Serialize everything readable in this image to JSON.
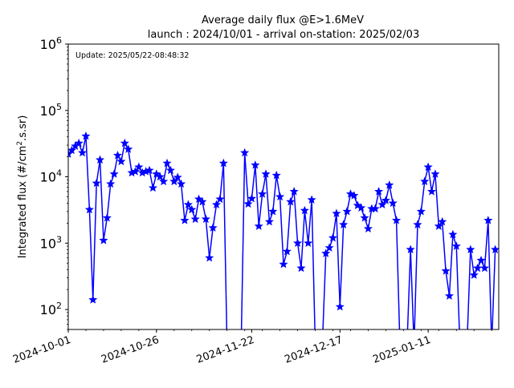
{
  "chart_data": {
    "type": "line",
    "title_line1": "Average daily flux @E>1.6MeV",
    "title_line2": "launch : 2024/10/01 - arrival on-station: 2025/02/03",
    "annotation": "Update: 2025/05/22-08:48:32",
    "ylabel_main": "Integrated flux (#/cm",
    "ylabel_sup": "2",
    "ylabel_end": ".s.sr)",
    "xlabel": "",
    "yscale": "log",
    "ylim": [
      50,
      1000000
    ],
    "xlim": [
      "2024-10-01",
      "2025-01-31"
    ],
    "grid": false,
    "legend": "none",
    "line_color": "#0000ff",
    "marker": "star",
    "x_ticks": [
      {
        "date": "2024-10-01",
        "label": "2024-10-01"
      },
      {
        "date": "2024-10-26",
        "label": "2024-10-26"
      },
      {
        "date": "2024-11-22",
        "label": "2024-11-22"
      },
      {
        "date": "2024-12-17",
        "label": "2024-12-17"
      },
      {
        "date": "2025-01-11",
        "label": "2025-01-11"
      }
    ],
    "y_ticks": [
      {
        "value": 100,
        "base": "10",
        "exp": "2"
      },
      {
        "value": 1000,
        "base": "10",
        "exp": "3"
      },
      {
        "value": 10000,
        "base": "10",
        "exp": "4"
      },
      {
        "value": 100000,
        "base": "10",
        "exp": "5"
      },
      {
        "value": 1000000,
        "base": "10",
        "exp": "6"
      }
    ],
    "series": [
      {
        "x": [
          "2024-10-01",
          "2024-10-02",
          "2024-10-03",
          "2024-10-04",
          "2024-10-05",
          "2024-10-06",
          "2024-10-07",
          "2024-10-08",
          "2024-10-09",
          "2024-10-10",
          "2024-10-11",
          "2024-10-12",
          "2024-10-13",
          "2024-10-14",
          "2024-10-15",
          "2024-10-16",
          "2024-10-17",
          "2024-10-18",
          "2024-10-19",
          "2024-10-20",
          "2024-10-21",
          "2024-10-22",
          "2024-10-23",
          "2024-10-24",
          "2024-10-25",
          "2024-10-26",
          "2024-10-27",
          "2024-10-28",
          "2024-10-29",
          "2024-10-30",
          "2024-10-31",
          "2024-11-01",
          "2024-11-02",
          "2024-11-03",
          "2024-11-04",
          "2024-11-05",
          "2024-11-06",
          "2024-11-07",
          "2024-11-08",
          "2024-11-09",
          "2024-11-10",
          "2024-11-11",
          "2024-11-12",
          "2024-11-13",
          "2024-11-14",
          "2024-11-15",
          "2024-11-16",
          "2024-11-17",
          "2024-11-18",
          "2024-11-19",
          "2024-11-20",
          "2024-11-21",
          "2024-11-22",
          "2024-11-23",
          "2024-11-24",
          "2024-11-25",
          "2024-11-26",
          "2024-11-27",
          "2024-11-28",
          "2024-11-29",
          "2024-11-30",
          "2024-12-01",
          "2024-12-02",
          "2024-12-03",
          "2024-12-04",
          "2024-12-05",
          "2024-12-06",
          "2024-12-07",
          "2024-12-08",
          "2024-12-09",
          "2024-12-10",
          "2024-12-11",
          "2024-12-12",
          "2024-12-13",
          "2024-12-14",
          "2024-12-15",
          "2024-12-16",
          "2024-12-17",
          "2024-12-18",
          "2024-12-19",
          "2024-12-20",
          "2024-12-21",
          "2024-12-22",
          "2024-12-23",
          "2024-12-24",
          "2024-12-25",
          "2024-12-26",
          "2024-12-27",
          "2024-12-28",
          "2024-12-29",
          "2024-12-30",
          "2024-12-31",
          "2025-01-01",
          "2025-01-02",
          "2025-01-03",
          "2025-01-04",
          "2025-01-05",
          "2025-01-06",
          "2025-01-07",
          "2025-01-08",
          "2025-01-09",
          "2025-01-10",
          "2025-01-11",
          "2025-01-12",
          "2025-01-13",
          "2025-01-14",
          "2025-01-15",
          "2025-01-16",
          "2025-01-17",
          "2025-01-18",
          "2025-01-19",
          "2025-01-20",
          "2025-01-21",
          "2025-01-22",
          "2025-01-23",
          "2025-01-24",
          "2025-01-25",
          "2025-01-26",
          "2025-01-27",
          "2025-01-28",
          "2025-01-29",
          "2025-01-30"
        ],
        "y": [
          22000,
          25000,
          29000,
          32000,
          23000,
          41000,
          3200,
          140,
          8000,
          18000,
          1100,
          2400,
          7800,
          11000,
          21000,
          17000,
          32000,
          26000,
          11500,
          12000,
          14000,
          11500,
          12000,
          12500,
          6800,
          11000,
          10000,
          8500,
          16000,
          12500,
          8500,
          9800,
          7800,
          2200,
          3800,
          3200,
          2300,
          4600,
          4200,
          2300,
          600,
          1700,
          3800,
          4600,
          16000,
          null,
          null,
          null,
          null,
          null,
          23000,
          3900,
          4700,
          15000,
          1800,
          5500,
          11000,
          2100,
          3000,
          10500,
          5000,
          480,
          750,
          4200,
          6000,
          1000,
          420,
          3100,
          1000,
          4500,
          null,
          null,
          null,
          700,
          850,
          1200,
          2800,
          110,
          1900,
          3000,
          5500,
          5200,
          3700,
          3400,
          2400,
          1650,
          3300,
          3300,
          6000,
          3800,
          4400,
          7500,
          4000,
          2200,
          null,
          null,
          null,
          800,
          null,
          1900,
          3000,
          8500,
          14000,
          6000,
          11000,
          1800,
          2100,
          380,
          160,
          1350,
          900,
          null,
          null,
          null,
          800,
          330,
          420,
          550,
          420,
          2200,
          null,
          800
        ]
      }
    ]
  }
}
